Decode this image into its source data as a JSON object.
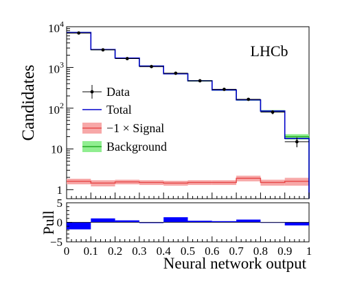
{
  "chart_data": [
    {
      "type": "histogram",
      "panel": "main",
      "ylabel": "Candidates",
      "yscale": "log",
      "ylim": [
        0.6,
        10000
      ],
      "xlim": [
        0,
        1
      ],
      "bin_edges": [
        0,
        0.1,
        0.2,
        0.3,
        0.4,
        0.5,
        0.6,
        0.7,
        0.8,
        0.9,
        1.0
      ],
      "annotation": "LHCb",
      "yticks": [
        {
          "label": "1",
          "value": 1,
          "sup": ""
        },
        {
          "label": "10",
          "value": 10,
          "sup": ""
        },
        {
          "label": "10",
          "value": 100,
          "sup": "2"
        },
        {
          "label": "10",
          "value": 1000,
          "sup": "3"
        },
        {
          "label": "10",
          "value": 10000,
          "sup": "4"
        }
      ],
      "series": [
        {
          "name": "Data",
          "color": "#000000",
          "x": [
            0.05,
            0.15,
            0.25,
            0.35,
            0.45,
            0.55,
            0.65,
            0.75,
            0.85,
            0.95
          ],
          "values": [
            7000,
            2700,
            1650,
            1050,
            720,
            470,
            290,
            165,
            80,
            15
          ],
          "errors": [
            84,
            52,
            41,
            32,
            27,
            22,
            17,
            13,
            9,
            4
          ]
        },
        {
          "name": "Total",
          "color": "#0000cc",
          "values": [
            7200,
            2750,
            1700,
            1080,
            700,
            470,
            280,
            160,
            85,
            18
          ]
        },
        {
          "name": "−1 × Signal",
          "color": "#e74c4c",
          "band_color": "#f7a8a8",
          "values": [
            1.6,
            1.45,
            1.55,
            1.5,
            1.45,
            1.5,
            1.5,
            1.9,
            1.5,
            1.6
          ],
          "band": [
            0.25,
            0.25,
            0.2,
            0.2,
            0.2,
            0.2,
            0.2,
            0.3,
            0.25,
            0.35
          ]
        },
        {
          "name": "Background",
          "color": "#22aa22",
          "band_color": "#90ee90",
          "values": [
            7200,
            2750,
            1700,
            1080,
            700,
            470,
            280,
            160,
            85,
            20
          ],
          "band": [
            200,
            80,
            50,
            35,
            25,
            18,
            12,
            8,
            5,
            3
          ]
        }
      ]
    },
    {
      "type": "bar",
      "panel": "pull",
      "xlabel": "Neural network output",
      "ylabel": "Pull",
      "ylim": [
        -5,
        5
      ],
      "xlim": [
        0,
        1
      ],
      "yticks": [
        -5,
        0,
        5
      ],
      "ytick_labels": [
        "−5",
        "0",
        "5"
      ],
      "xticks": [
        0,
        0.1,
        0.2,
        0.3,
        0.4,
        0.5,
        0.6,
        0.7,
        0.8,
        0.9,
        1.0
      ],
      "xtick_labels": [
        "0",
        "0.1",
        "0.2",
        "0.3",
        "0.4",
        "0.5",
        "0.6",
        "0.7",
        "0.8",
        "0.9",
        "1"
      ],
      "bin_edges": [
        0,
        0.1,
        0.2,
        0.3,
        0.4,
        0.5,
        0.6,
        0.7,
        0.8,
        0.9,
        1.0
      ],
      "values": [
        -1.8,
        1.0,
        0.5,
        -0.2,
        1.3,
        0.4,
        0.3,
        0.7,
        0.0,
        -0.8
      ],
      "color": "#0000ff"
    }
  ]
}
